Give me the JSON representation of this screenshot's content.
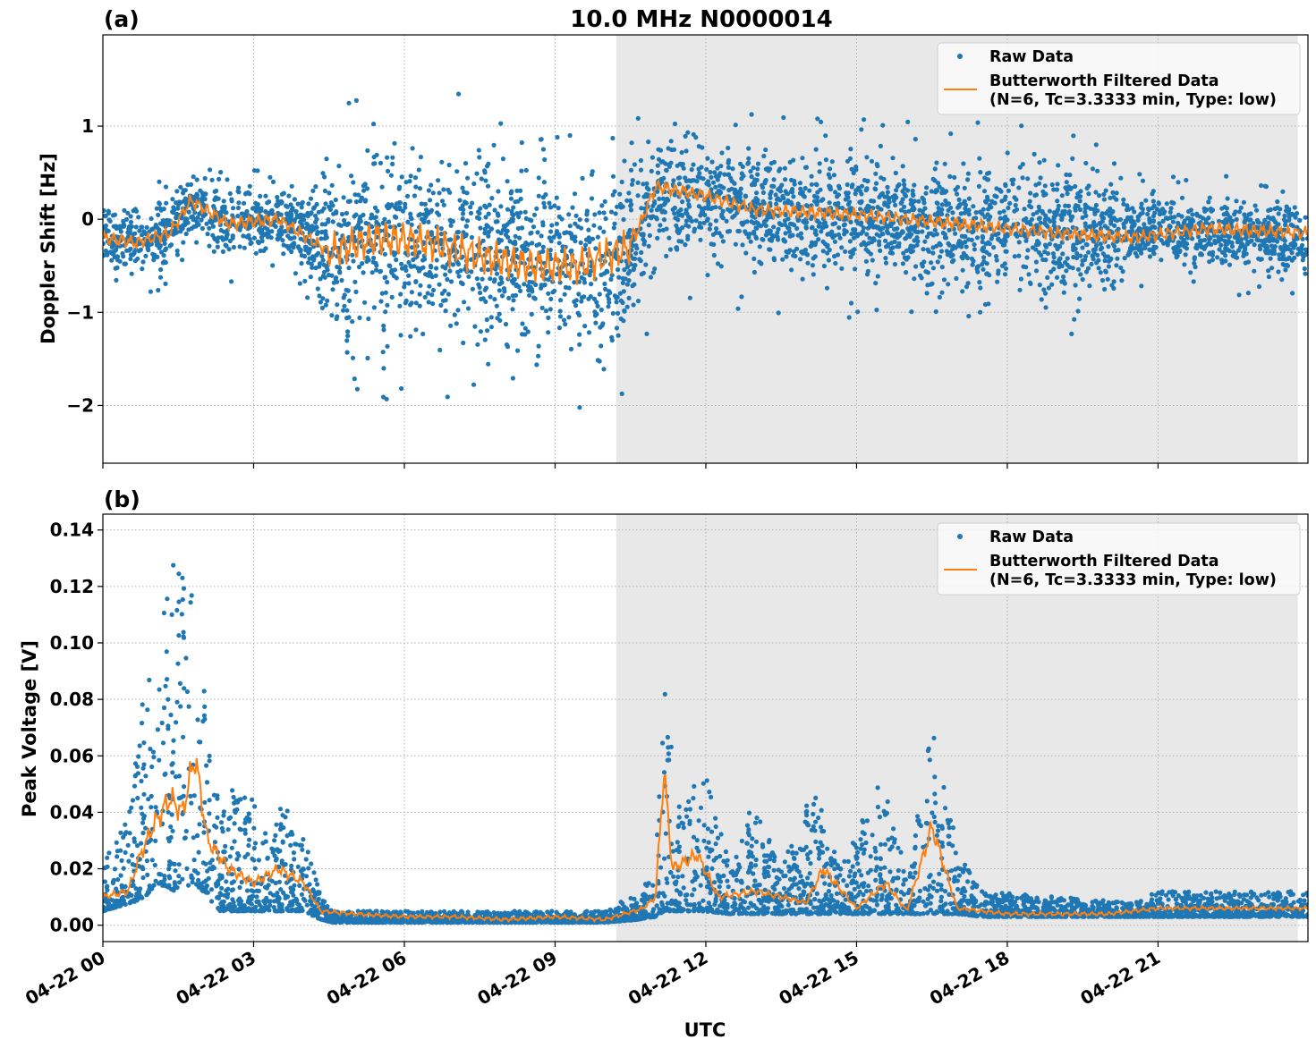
{
  "chart_data": [
    {
      "panel": "(a)",
      "type": "scatter",
      "title": "10.0 MHz N0000014",
      "xlabel": "",
      "ylabel": "Doppler Shift [Hz]",
      "x_unit": "UTC hours since 04-22 00:00",
      "xlim": [
        "04-22 00:00",
        "04-22 23:59"
      ],
      "ylim": [
        -2.62,
        1.98
      ],
      "yticks": [
        "1",
        "0",
        "−1",
        "−2"
      ],
      "grid": true,
      "legend_placement": "top-right",
      "shaded_region": {
        "start": "04-22 10:13",
        "end": "04-22 23:47",
        "color": "#e8e8e8"
      },
      "series": [
        {
          "name": "Raw Data",
          "style": "points",
          "color": "#1f77b4",
          "baseline": [
            [
              "04-22 00:00",
              -0.25
            ],
            [
              "04-22 01:00",
              -0.25
            ],
            [
              "04-22 01:45",
              0.15
            ],
            [
              "04-22 02:30",
              -0.05
            ],
            [
              "04-22 03:30",
              0.0
            ],
            [
              "04-22 04:30",
              -0.35
            ],
            [
              "04-22 06:00",
              -0.25
            ],
            [
              "04-22 07:30",
              -0.35
            ],
            [
              "04-22 09:00",
              -0.45
            ],
            [
              "04-22 10:00",
              -0.55
            ],
            [
              "04-22 10:45",
              -0.1
            ],
            [
              "04-22 11:00",
              0.3
            ],
            [
              "04-22 12:00",
              0.2
            ],
            [
              "04-22 13:00",
              0.1
            ],
            [
              "04-22 15:00",
              0.0
            ],
            [
              "04-22 17:00",
              -0.05
            ],
            [
              "04-22 19:00",
              -0.1
            ],
            [
              "04-22 21:00",
              -0.15
            ],
            [
              "04-22 23:59",
              -0.2
            ]
          ],
          "spread": [
            [
              "04-22 00:00",
              0.28
            ],
            [
              "04-22 04:00",
              0.3
            ],
            [
              "04-22 04:30",
              0.75
            ],
            [
              "04-22 10:30",
              0.85
            ],
            [
              "04-22 11:00",
              0.5
            ],
            [
              "04-22 16:00",
              0.5
            ],
            [
              "04-22 20:00",
              0.55
            ],
            [
              "04-22 20:30",
              0.3
            ],
            [
              "04-22 23:59",
              0.3
            ]
          ]
        },
        {
          "name": "Butterworth Filtered Data\n(N=6, Tc=3.3333 min, Type: low)",
          "style": "line",
          "color": "#ff7f0e",
          "values": [
            [
              "04-22 00:00",
              -0.2
            ],
            [
              "04-22 00:40",
              -0.25
            ],
            [
              "04-22 01:20",
              -0.15
            ],
            [
              "04-22 01:45",
              0.2
            ],
            [
              "04-22 02:30",
              -0.05
            ],
            [
              "04-22 03:30",
              0.0
            ],
            [
              "04-22 04:30",
              -0.35
            ],
            [
              "04-22 05:30",
              -0.2
            ],
            [
              "04-22 06:30",
              -0.25
            ],
            [
              "04-22 07:30",
              -0.4
            ],
            [
              "04-22 08:30",
              -0.5
            ],
            [
              "04-22 09:30",
              -0.5
            ],
            [
              "04-22 10:30",
              -0.3
            ],
            [
              "04-22 11:00",
              0.35
            ],
            [
              "04-22 12:00",
              0.25
            ],
            [
              "04-22 13:00",
              0.1
            ],
            [
              "04-22 15:00",
              0.05
            ],
            [
              "04-22 17:00",
              -0.05
            ],
            [
              "04-22 19:00",
              -0.15
            ],
            [
              "04-22 20:30",
              -0.2
            ],
            [
              "04-22 22:00",
              -0.1
            ],
            [
              "04-22 23:59",
              -0.15
            ]
          ]
        }
      ]
    },
    {
      "panel": "(b)",
      "type": "scatter",
      "title": "",
      "xlabel": "UTC",
      "ylabel": "Peak Voltage [V]",
      "xlim": [
        "04-22 00:00",
        "04-22 23:59"
      ],
      "ylim": [
        -0.0058,
        0.1456
      ],
      "yticks": [
        "0.00",
        "0.02",
        "0.04",
        "0.06",
        "0.08",
        "0.10",
        "0.12",
        "0.14"
      ],
      "xticks": [
        "04-22 00",
        "04-22 03",
        "04-22 06",
        "04-22 09",
        "04-22 12",
        "04-22 15",
        "04-22 18",
        "04-22 21"
      ],
      "grid": true,
      "legend_placement": "top-right",
      "shaded_region": {
        "start": "04-22 10:13",
        "end": "04-22 23:47",
        "color": "#e8e8e8"
      },
      "series": [
        {
          "name": "Raw Data",
          "style": "points",
          "color": "#1f77b4",
          "envelope": [
            [
              "04-22 00:00",
              0.005,
              0.022
            ],
            [
              "04-22 00:35",
              0.008,
              0.05
            ],
            [
              "04-22 00:50",
              0.01,
              0.09
            ],
            [
              "04-22 01:05",
              0.015,
              0.1
            ],
            [
              "04-22 01:25",
              0.012,
              0.13
            ],
            [
              "04-22 01:50",
              0.015,
              0.12
            ],
            [
              "04-22 02:05",
              0.01,
              0.07
            ],
            [
              "04-22 02:20",
              0.005,
              0.05
            ],
            [
              "04-22 03:00",
              0.005,
              0.045
            ],
            [
              "04-22 03:20",
              0.005,
              0.03
            ],
            [
              "04-22 03:30",
              0.005,
              0.045
            ],
            [
              "04-22 04:00",
              0.005,
              0.035
            ],
            [
              "04-22 04:20",
              0.002,
              0.01
            ],
            [
              "04-22 04:35",
              0.001,
              0.005
            ],
            [
              "04-22 10:00",
              0.001,
              0.005
            ],
            [
              "04-22 10:40",
              0.002,
              0.012
            ],
            [
              "04-22 11:00",
              0.003,
              0.02
            ],
            [
              "04-22 11:10",
              0.005,
              0.1
            ],
            [
              "04-22 11:25",
              0.005,
              0.04
            ],
            [
              "04-22 11:55",
              0.005,
              0.06
            ],
            [
              "04-22 12:30",
              0.004,
              0.02
            ],
            [
              "04-22 12:55",
              0.004,
              0.045
            ],
            [
              "04-22 13:30",
              0.004,
              0.02
            ],
            [
              "04-22 14:10",
              0.004,
              0.05
            ],
            [
              "04-22 14:40",
              0.004,
              0.02
            ],
            [
              "04-22 15:35",
              0.004,
              0.055
            ],
            [
              "04-22 16:00",
              0.004,
              0.015
            ],
            [
              "04-22 16:30",
              0.004,
              0.072
            ],
            [
              "04-22 17:00",
              0.004,
              0.028
            ],
            [
              "04-22 17:30",
              0.003,
              0.012
            ],
            [
              "04-22 20:30",
              0.003,
              0.008
            ],
            [
              "04-22 21:00",
              0.003,
              0.012
            ],
            [
              "04-22 23:59",
              0.003,
              0.012
            ]
          ]
        },
        {
          "name": "Butterworth Filtered Data\n(N=6, Tc=3.3333 min, Type: low)",
          "style": "line",
          "color": "#ff7f0e",
          "values": [
            [
              "04-22 00:00",
              0.01
            ],
            [
              "04-22 00:30",
              0.012
            ],
            [
              "04-22 00:45",
              0.025
            ],
            [
              "04-22 01:00",
              0.035
            ],
            [
              "04-22 01:20",
              0.045
            ],
            [
              "04-22 01:35",
              0.04
            ],
            [
              "04-22 01:50",
              0.06
            ],
            [
              "04-22 02:05",
              0.03
            ],
            [
              "04-22 02:30",
              0.02
            ],
            [
              "04-22 03:00",
              0.015
            ],
            [
              "04-22 03:30",
              0.02
            ],
            [
              "04-22 04:00",
              0.015
            ],
            [
              "04-22 04:20",
              0.005
            ],
            [
              "04-22 05:00",
              0.004
            ],
            [
              "04-22 06:00",
              0.003
            ],
            [
              "04-22 07:00",
              0.003
            ],
            [
              "04-22 08:00",
              0.002
            ],
            [
              "04-22 09:00",
              0.003
            ],
            [
              "04-22 10:00",
              0.002
            ],
            [
              "04-22 10:45",
              0.006
            ],
            [
              "04-22 11:00",
              0.01
            ],
            [
              "04-22 11:10",
              0.055
            ],
            [
              "04-22 11:20",
              0.02
            ],
            [
              "04-22 11:50",
              0.025
            ],
            [
              "04-22 12:15",
              0.01
            ],
            [
              "04-22 13:00",
              0.012
            ],
            [
              "04-22 14:00",
              0.008
            ],
            [
              "04-22 14:20",
              0.02
            ],
            [
              "04-22 15:00",
              0.006
            ],
            [
              "04-22 15:35",
              0.015
            ],
            [
              "04-22 16:00",
              0.005
            ],
            [
              "04-22 16:30",
              0.035
            ],
            [
              "04-22 17:00",
              0.006
            ],
            [
              "04-22 18:00",
              0.004
            ],
            [
              "04-22 20:00",
              0.004
            ],
            [
              "04-22 21:00",
              0.006
            ],
            [
              "04-22 22:00",
              0.006
            ],
            [
              "04-22 23:59",
              0.006
            ]
          ]
        }
      ]
    }
  ]
}
